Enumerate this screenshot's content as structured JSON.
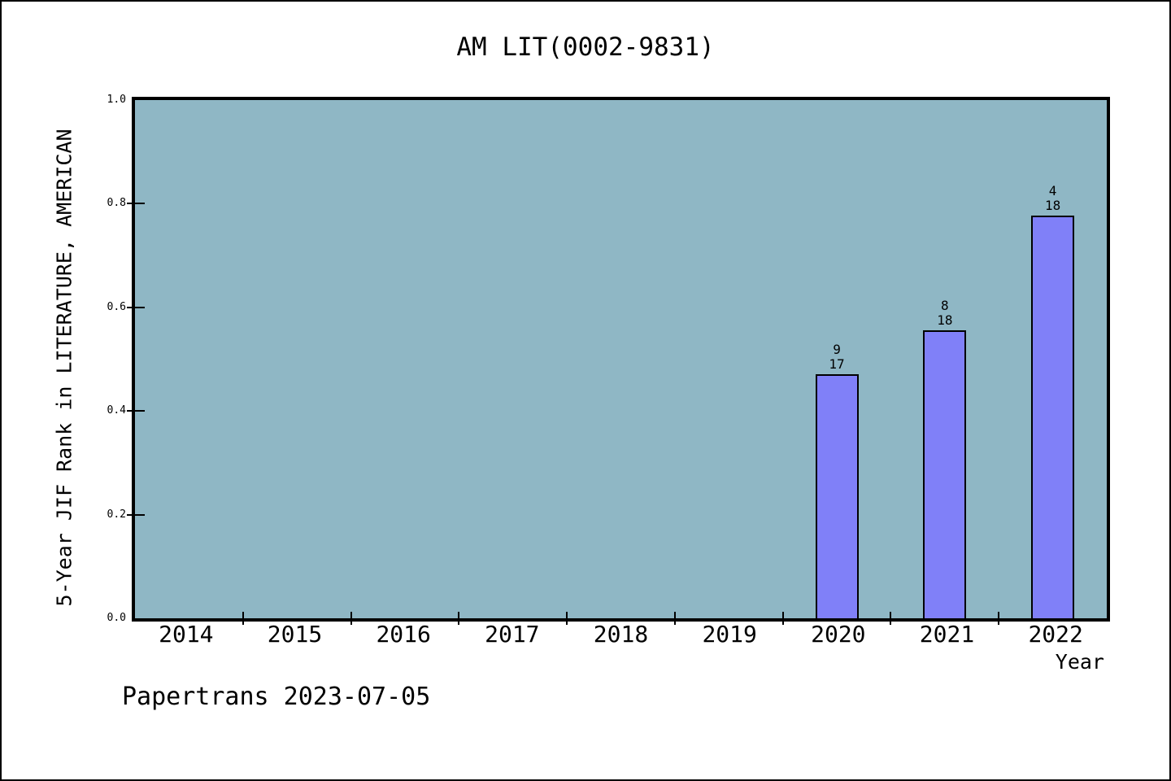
{
  "chart_data": {
    "type": "bar",
    "title": "AM LIT(0002-9831)",
    "xlabel": "Year",
    "ylabel": "5-Year JIF Rank in LITERATURE, AMERICAN",
    "categories": [
      "2014",
      "2015",
      "2016",
      "2017",
      "2018",
      "2019",
      "2020",
      "2021",
      "2022"
    ],
    "ylim": [
      0.0,
      1.0
    ],
    "yticks": [
      "0.0",
      "0.2",
      "0.4",
      "0.6",
      "0.8",
      "1.0"
    ],
    "grid": false,
    "legend": "none",
    "series": [
      {
        "name": "5-Year JIF Rank",
        "points": [
          {
            "category": "2020",
            "rank": "9",
            "total": "17",
            "value": 0.4706
          },
          {
            "category": "2021",
            "rank": "8",
            "total": "18",
            "value": 0.5556
          },
          {
            "category": "2022",
            "rank": "4",
            "total": "18",
            "value": 0.7778
          }
        ]
      }
    ],
    "colors": {
      "bar_fill": "#8080f8",
      "bar_edge": "#000000",
      "plot_bg": "#8fb7c5",
      "axis": "#000000",
      "text": "#000000"
    }
  },
  "footer": {
    "text": "Papertrans 2023-07-05"
  }
}
